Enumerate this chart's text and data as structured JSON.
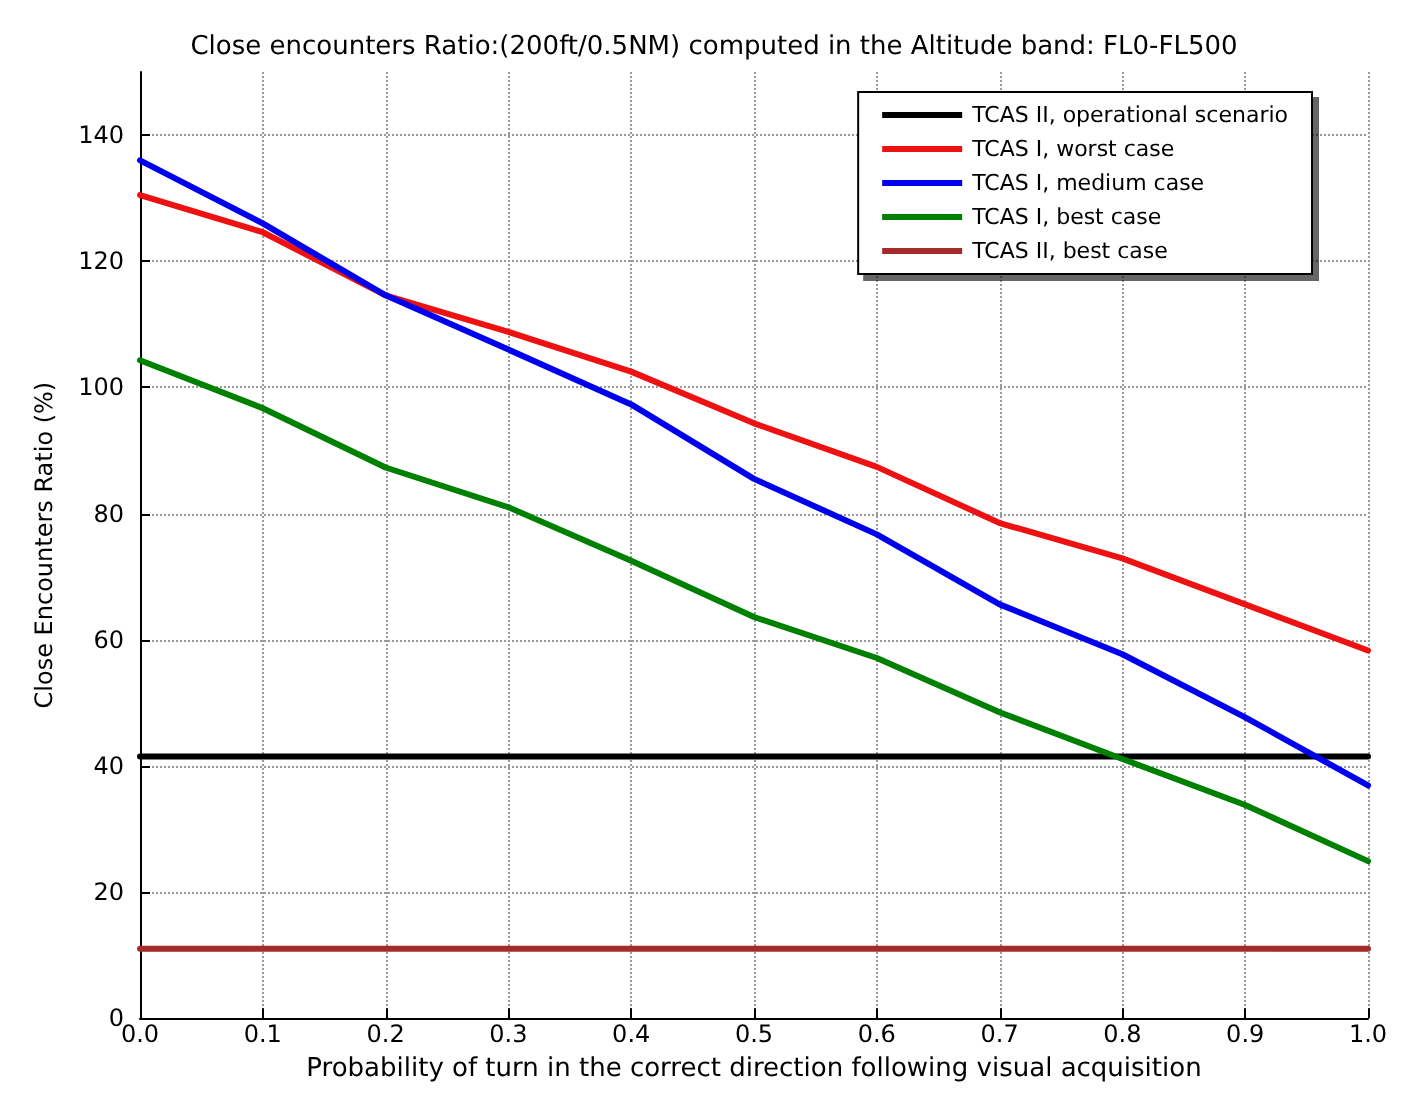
{
  "chart_data": {
    "type": "line",
    "title": "Close encounters Ratio:(200ft/0.5NM) computed in the Altitude band: FL0-FL500",
    "xlabel": "Probability of turn in the correct direction following visual acquisition",
    "ylabel": "Close Encounters Ratio (%)",
    "x": [
      0,
      0.1,
      0.2,
      0.3,
      0.4,
      0.5,
      0.6,
      0.7,
      0.8,
      0.9,
      1.0
    ],
    "series": [
      {
        "name": "TCAS II, operational scenario",
        "color": "#000000",
        "values": [
          41.5,
          41.5,
          41.5,
          41.5,
          41.5,
          41.5,
          41.5,
          41.5,
          41.5,
          41.5,
          41.5
        ]
      },
      {
        "name": "TCAS I, worst case",
        "color": "#ee1111",
        "values": [
          130.5,
          124.6,
          114.6,
          108.8,
          102.5,
          94.3,
          87.4,
          78.5,
          72.9,
          65.6,
          58.3
        ]
      },
      {
        "name": "TCAS I, medium case",
        "color": "#0000ee",
        "values": [
          136,
          126,
          114.6,
          106,
          97.3,
          85.5,
          76.7,
          65.6,
          57.7,
          47.7,
          36.9
        ]
      },
      {
        "name": "TCAS I, best case",
        "color": "#008000",
        "values": [
          104.3,
          96.7,
          87.3,
          81,
          72.5,
          63.6,
          57.1,
          48.5,
          41.1,
          33.8,
          24.9
        ]
      },
      {
        "name": "TCAS II, best case",
        "color": "#a52a2a",
        "values": [
          11,
          11,
          11,
          11,
          11,
          11,
          11,
          11,
          11,
          11,
          11
        ]
      }
    ],
    "xlim": [
      0,
      1
    ],
    "xticks": [
      {
        "value": 0,
        "label": "0.0"
      },
      {
        "value": 0.1,
        "label": "0.1"
      },
      {
        "value": 0.2,
        "label": "0.2"
      },
      {
        "value": 0.3,
        "label": "0.3"
      },
      {
        "value": 0.4,
        "label": "0.4"
      },
      {
        "value": 0.5,
        "label": "0.5"
      },
      {
        "value": 0.6,
        "label": "0.6"
      },
      {
        "value": 0.7,
        "label": "0.7"
      },
      {
        "value": 0.8,
        "label": "0.8"
      },
      {
        "value": 0.9,
        "label": "0.9"
      },
      {
        "value": 1,
        "label": "1.0"
      }
    ],
    "ylim": [
      0,
      150
    ],
    "yticks": [
      0,
      20,
      40,
      60,
      80,
      100,
      120,
      140
    ],
    "grid": true,
    "legend": "top right",
    "marker": "none",
    "line_style": "solid"
  }
}
